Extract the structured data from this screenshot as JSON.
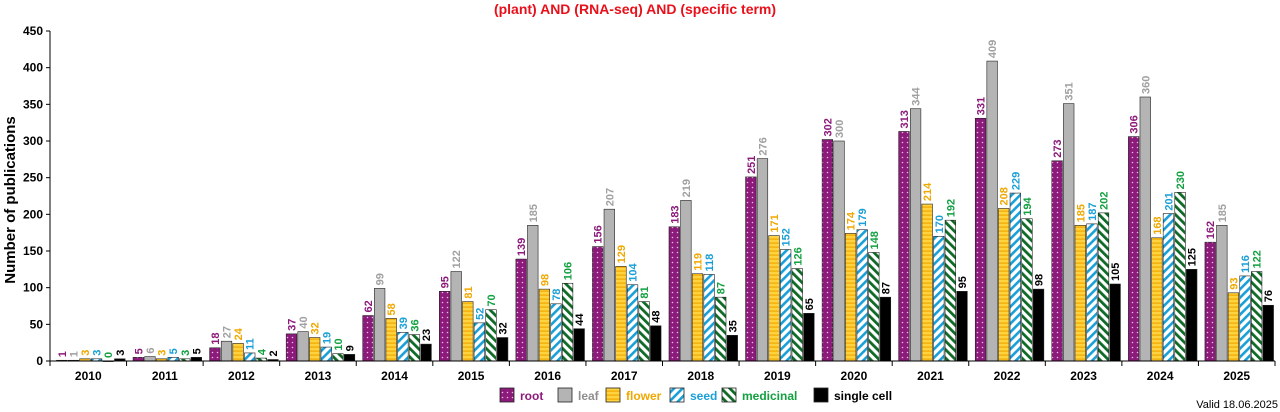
{
  "chart_data": {
    "type": "bar",
    "title": "(plant) AND (RNA-seq) AND (specific term)",
    "xlabel": "",
    "ylabel": "Number of publications",
    "ylim": [
      0,
      450
    ],
    "yticks": [
      "0",
      "50",
      "100",
      "150",
      "200",
      "250",
      "300",
      "350",
      "400",
      "450"
    ],
    "categories": [
      "2010",
      "2011",
      "2012",
      "2013",
      "2014",
      "2015",
      "2016",
      "2017",
      "2018",
      "2019",
      "2020",
      "2021",
      "2022",
      "2023",
      "2024",
      "2025"
    ],
    "series": [
      {
        "name": "root",
        "color": "#8b1a7a",
        "label_color": "#8b1a7a",
        "pattern": "dots",
        "values": [
          1,
          5,
          18,
          37,
          62,
          95,
          139,
          156,
          183,
          251,
          302,
          313,
          331,
          273,
          306,
          162
        ]
      },
      {
        "name": "leaf",
        "color": "#b4b4b4",
        "label_color": "#a0a0a0",
        "pattern": "solid",
        "values": [
          1,
          6,
          27,
          40,
          99,
          122,
          185,
          207,
          219,
          276,
          300,
          344,
          409,
          351,
          360,
          185
        ]
      },
      {
        "name": "flower",
        "color": "#ffd23f",
        "label_color": "#f0a800",
        "pattern": "hlines",
        "values": [
          3,
          3,
          24,
          32,
          58,
          81,
          98,
          129,
          119,
          171,
          174,
          214,
          208,
          185,
          168,
          93
        ]
      },
      {
        "name": "seed",
        "color": "#1aa0d8",
        "label_color": "#1a9fd6",
        "pattern": "diag",
        "values": [
          3,
          5,
          11,
          19,
          39,
          52,
          78,
          104,
          118,
          152,
          179,
          170,
          229,
          187,
          201,
          116
        ]
      },
      {
        "name": "medicinal",
        "color": "#0e7a2c",
        "label_color": "#12a040",
        "pattern": "diagdark",
        "values": [
          0,
          3,
          4,
          10,
          36,
          70,
          106,
          81,
          87,
          126,
          148,
          192,
          194,
          202,
          230,
          122
        ]
      },
      {
        "name": "single cell",
        "color": "#000000",
        "label_color": "#000000",
        "pattern": "solid",
        "values": [
          3,
          5,
          2,
          9,
          23,
          32,
          44,
          48,
          35,
          65,
          87,
          95,
          98,
          105,
          125,
          76
        ]
      }
    ],
    "legend": "bottom",
    "grid": false
  },
  "footer": {
    "valid_text": "Valid 18.06.2025"
  }
}
